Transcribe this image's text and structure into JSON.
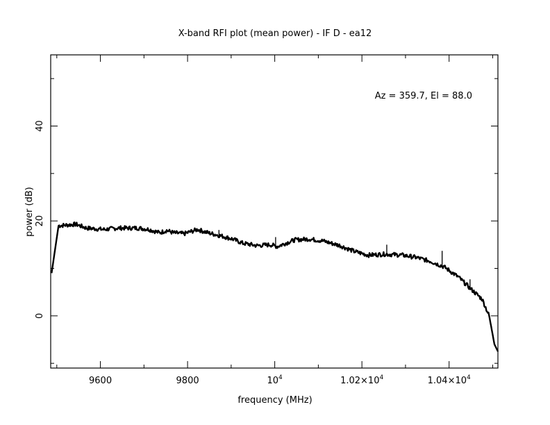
{
  "chart_data": {
    "type": "line",
    "title": "X-band RFI plot (mean power) - IF D - ea12",
    "xlabel": "frequency (MHz)",
    "ylabel": "power (dB)",
    "annotation": "Az = 359.7, El = 88.0",
    "xlim": [
      9486,
      10512
    ],
    "ylim": [
      -11,
      55
    ],
    "grid": false,
    "x_ticks": [
      {
        "value": 9600,
        "label": "9600",
        "sup": ""
      },
      {
        "value": 9800,
        "label": "9800",
        "sup": ""
      },
      {
        "value": 10000,
        "label": "10",
        "sup": "4"
      },
      {
        "value": 10200,
        "label": "1.02×10",
        "sup": "4"
      },
      {
        "value": 10400,
        "label": "1.04×10",
        "sup": "4"
      }
    ],
    "x_minor_ticks": [
      9500,
      9700,
      9900,
      10100,
      10300,
      10500
    ],
    "y_ticks": [
      {
        "value": 0,
        "label": "0"
      },
      {
        "value": 20,
        "label": "20"
      },
      {
        "value": 40,
        "label": "40"
      }
    ],
    "y_minor_ticks": [
      -10,
      10,
      30,
      50
    ],
    "series": [
      {
        "name": "mean power",
        "x": [
          9488,
          9504,
          9544,
          9568,
          9608,
          9640,
          9688,
          9712,
          9736,
          9752,
          9768,
          9792,
          9823,
          9847,
          9879,
          9903,
          9927,
          9959,
          9990,
          10006,
          10022,
          10046,
          10078,
          10110,
          10150,
          10182,
          10214,
          10253,
          10293,
          10325,
          10357,
          10389,
          10421,
          10452,
          10476,
          10492,
          10504,
          10512
        ],
        "y": [
          9,
          19,
          19.3,
          18.5,
          18.2,
          18.5,
          18.5,
          18.2,
          17.5,
          18.0,
          17.5,
          17.3,
          18.2,
          17.5,
          16.8,
          16.2,
          15.3,
          14.8,
          15.0,
          14.6,
          15.2,
          16.0,
          16.2,
          15.8,
          14.8,
          13.6,
          12.8,
          13.0,
          12.8,
          12.3,
          11.5,
          10.3,
          8.2,
          5.5,
          3.5,
          0,
          -6,
          -7.5
        ]
      }
    ],
    "spikes": [
      {
        "x": 9872,
        "y": 18.1
      },
      {
        "x": 10002,
        "y": 16.6
      },
      {
        "x": 10257,
        "y": 15.0
      },
      {
        "x": 10384,
        "y": 13.7
      },
      {
        "x": 10448,
        "y": 7.7
      }
    ]
  }
}
